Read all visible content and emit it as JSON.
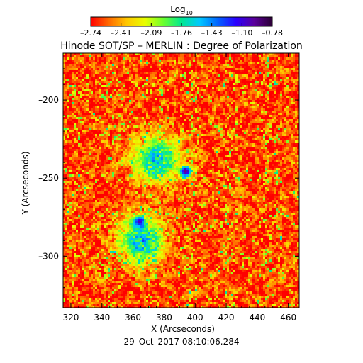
{
  "chart_data": {
    "type": "heatmap",
    "title": "Hinode SOT/SP – MERLIN : Degree of Polarization",
    "xlabel": "X (Arcseconds)",
    "ylabel": "Y (Arcseconds)",
    "footer": "29–Oct–2017 08:10:06.284",
    "colorbar": {
      "label_base": "Log",
      "label_sub": "10",
      "ticks": [
        "–2.74",
        "–2.41",
        "–2.09",
        "–1.76",
        "–1.43",
        "–1.10",
        "–0.78"
      ],
      "range": [
        -2.74,
        -0.78
      ],
      "colors": [
        "#ff0000",
        "#ff6a00",
        "#ffc800",
        "#e8ff00",
        "#6bff2e",
        "#00e890",
        "#00c8ff",
        "#0064ff",
        "#2a00ff",
        "#5a009a",
        "#2a0033"
      ]
    },
    "x_ticks": [
      320,
      340,
      360,
      380,
      400,
      420,
      440,
      460
    ],
    "y_ticks": [
      -200,
      -250,
      -300
    ],
    "y_tick_labels": [
      "–200",
      "–250",
      "–300"
    ],
    "xlim": [
      315,
      467
    ],
    "ylim": [
      -333,
      -170
    ],
    "features": [
      {
        "name": "dark polarized spot",
        "x": 394,
        "y": -246,
        "level": -0.85
      },
      {
        "name": "dark polarized spot",
        "x": 364,
        "y": -278,
        "level": -0.9
      },
      {
        "name": "plage region",
        "x": 365,
        "y": -290,
        "level": -1.3
      },
      {
        "name": "plage region",
        "x": 375,
        "y": -238,
        "level": -1.35
      }
    ]
  }
}
